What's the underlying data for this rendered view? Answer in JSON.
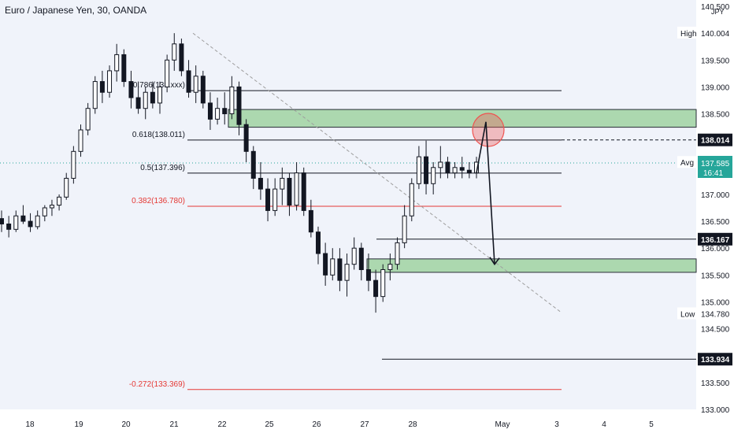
{
  "header": {
    "symbol_title": "Euro / Japanese Yen, 30, OANDA"
  },
  "chart_data": {
    "type": "candlestick",
    "currency": "JPY",
    "y_range": [
      133.0,
      140.5
    ],
    "y_ticks": [
      "140.500",
      "140.004",
      "139.500",
      "139.000",
      "138.500",
      "138.014",
      "137.596",
      "137.585",
      "137.000",
      "136.500",
      "136.167",
      "136.000",
      "135.500",
      "135.000",
      "134.780",
      "134.500",
      "134.000",
      "133.934",
      "133.500",
      "133.000"
    ],
    "x_ticks": [
      "18",
      "19",
      "20",
      "21",
      "22",
      "25",
      "26",
      "27",
      "28",
      "May",
      "3",
      "4",
      "5"
    ],
    "price_labels": [
      {
        "tag": "High",
        "value": "140.004"
      },
      {
        "tag": "Avg",
        "value": "137.596"
      },
      {
        "tag": "Low",
        "value": "134.780"
      }
    ],
    "current_price": {
      "value": "137.585",
      "countdown": "16:41",
      "color": "#26a69a"
    },
    "marked_levels": [
      "138.014",
      "136.167",
      "133.934"
    ],
    "fibonacci_levels": [
      {
        "label": "0.786(138.xxx)",
        "value": 138.93,
        "color": "#131722"
      },
      {
        "label": "0.618(138.011)",
        "value": 138.011,
        "color": "#131722"
      },
      {
        "label": "0.5(137.396)",
        "value": 137.396,
        "color": "#131722"
      },
      {
        "label": "0.382(136.780)",
        "value": 136.78,
        "color": "#e53935"
      },
      {
        "label": "-0.272(133.369)",
        "value": 133.369,
        "color": "#e53935"
      }
    ],
    "zones": [
      {
        "name": "supply",
        "low": 138.25,
        "high": 138.58,
        "color": "#a5d6a7"
      },
      {
        "name": "demand",
        "low": 135.55,
        "high": 135.8,
        "color": "#a5d6a7"
      }
    ],
    "colors": {
      "candle": "#131722",
      "zone_border": "#131722",
      "accent_up": "#26a69a",
      "ellipse": "#ef5350",
      "trendline": "#9e9e9e"
    },
    "ohlc": [
      [
        136.55,
        136.7,
        136.3,
        136.45
      ],
      [
        136.45,
        136.6,
        136.2,
        136.35
      ],
      [
        136.35,
        136.7,
        136.3,
        136.6
      ],
      [
        136.6,
        136.8,
        136.45,
        136.5
      ],
      [
        136.5,
        136.65,
        136.3,
        136.4
      ],
      [
        136.4,
        136.7,
        136.35,
        136.6
      ],
      [
        136.6,
        136.8,
        136.5,
        136.75
      ],
      [
        136.75,
        136.9,
        136.6,
        136.8
      ],
      [
        136.8,
        137.0,
        136.7,
        136.95
      ],
      [
        136.95,
        137.4,
        136.9,
        137.3
      ],
      [
        137.3,
        137.9,
        137.2,
        137.8
      ],
      [
        137.8,
        138.3,
        137.7,
        138.2
      ],
      [
        138.2,
        138.7,
        138.1,
        138.6
      ],
      [
        138.6,
        139.2,
        138.5,
        139.1
      ],
      [
        139.1,
        139.3,
        138.7,
        138.9
      ],
      [
        138.9,
        139.4,
        138.8,
        139.3
      ],
      [
        139.3,
        139.8,
        139.1,
        139.6
      ],
      [
        139.6,
        139.7,
        139.0,
        139.1
      ],
      [
        139.1,
        139.3,
        138.6,
        138.8
      ],
      [
        138.8,
        139.1,
        138.5,
        138.6
      ],
      [
        138.6,
        139.0,
        138.4,
        138.9
      ],
      [
        138.9,
        139.1,
        138.6,
        138.7
      ],
      [
        138.7,
        139.1,
        138.5,
        139.0
      ],
      [
        139.0,
        139.6,
        138.9,
        139.5
      ],
      [
        139.5,
        140.0,
        139.3,
        139.8
      ],
      [
        139.8,
        139.9,
        139.2,
        139.3
      ],
      [
        139.3,
        139.5,
        138.8,
        138.9
      ],
      [
        138.9,
        139.4,
        138.7,
        139.2
      ],
      [
        139.2,
        139.3,
        138.6,
        138.7
      ],
      [
        138.7,
        138.9,
        138.2,
        138.4
      ],
      [
        138.4,
        138.8,
        138.3,
        138.6
      ],
      [
        138.6,
        138.9,
        138.3,
        138.5
      ],
      [
        138.5,
        139.2,
        138.4,
        139.0
      ],
      [
        139.0,
        139.1,
        138.1,
        138.3
      ],
      [
        138.3,
        138.4,
        137.6,
        137.8
      ],
      [
        137.8,
        137.9,
        137.1,
        137.3
      ],
      [
        137.3,
        137.6,
        136.9,
        137.1
      ],
      [
        137.1,
        137.3,
        136.5,
        136.7
      ],
      [
        136.7,
        137.3,
        136.6,
        137.1
      ],
      [
        137.1,
        137.5,
        136.8,
        137.3
      ],
      [
        137.3,
        137.4,
        136.6,
        136.8
      ],
      [
        136.8,
        137.6,
        136.7,
        137.4
      ],
      [
        137.4,
        137.5,
        136.6,
        136.7
      ],
      [
        136.7,
        136.9,
        136.2,
        136.3
      ],
      [
        136.3,
        136.4,
        135.7,
        135.9
      ],
      [
        135.9,
        136.1,
        135.3,
        135.5
      ],
      [
        135.5,
        136.0,
        135.4,
        135.8
      ],
      [
        135.8,
        136.0,
        135.2,
        135.4
      ],
      [
        135.4,
        135.9,
        135.1,
        135.7
      ],
      [
        135.7,
        136.2,
        135.6,
        136.0
      ],
      [
        136.0,
        136.1,
        135.4,
        135.6
      ],
      [
        135.6,
        135.9,
        135.2,
        135.4
      ],
      [
        135.4,
        135.6,
        134.8,
        135.1
      ],
      [
        135.1,
        135.7,
        135.0,
        135.6
      ],
      [
        135.6,
        135.9,
        135.4,
        135.7
      ],
      [
        135.7,
        136.2,
        135.6,
        136.1
      ],
      [
        136.1,
        136.8,
        136.0,
        136.6
      ],
      [
        136.6,
        137.3,
        136.5,
        137.2
      ],
      [
        137.2,
        137.9,
        137.1,
        137.7
      ],
      [
        137.7,
        138.0,
        137.0,
        137.2
      ],
      [
        137.2,
        137.6,
        137.0,
        137.5
      ],
      [
        137.5,
        137.9,
        137.3,
        137.6
      ],
      [
        137.6,
        137.7,
        137.3,
        137.4
      ],
      [
        137.4,
        137.6,
        137.3,
        137.5
      ],
      [
        137.5,
        137.7,
        137.3,
        137.45
      ],
      [
        137.45,
        137.6,
        137.3,
        137.4
      ],
      [
        137.4,
        137.7,
        137.3,
        137.6
      ]
    ],
    "projection": {
      "from": 138.3,
      "peak": 138.35,
      "to": 135.7
    }
  }
}
